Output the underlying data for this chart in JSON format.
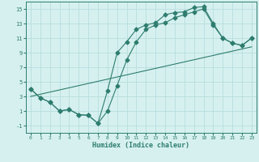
{
  "xlabel": "Humidex (Indice chaleur)",
  "bg_color": "#d6f0f0",
  "line_color": "#2e7d6e",
  "grid_color": "#b8dede",
  "xlim": [
    -0.5,
    23.5
  ],
  "ylim": [
    -2.0,
    16.0
  ],
  "yticks": [
    -1,
    1,
    3,
    5,
    7,
    9,
    11,
    13,
    15
  ],
  "xticks": [
    0,
    1,
    2,
    3,
    4,
    5,
    6,
    7,
    8,
    9,
    10,
    11,
    12,
    13,
    14,
    15,
    16,
    17,
    18,
    19,
    20,
    21,
    22,
    23
  ],
  "line1_x": [
    0,
    1,
    2,
    3,
    4,
    5,
    6,
    7,
    8,
    9,
    10,
    11,
    12,
    13,
    14,
    15,
    16,
    17,
    18,
    19,
    20,
    21,
    22,
    23
  ],
  "line1_y": [
    4.0,
    2.8,
    2.2,
    1.0,
    1.2,
    0.5,
    0.4,
    -0.7,
    3.8,
    9.0,
    10.5,
    12.2,
    12.8,
    13.1,
    14.2,
    14.5,
    14.6,
    15.2,
    15.3,
    13.0,
    11.0,
    10.3,
    10.0,
    11.0
  ],
  "line2_x": [
    0,
    1,
    2,
    3,
    4,
    5,
    6,
    7,
    8,
    9,
    10,
    11,
    12,
    13,
    14,
    15,
    16,
    17,
    18,
    19,
    20,
    21,
    22,
    23
  ],
  "line2_y": [
    4.0,
    2.8,
    2.2,
    1.0,
    1.2,
    0.5,
    0.4,
    -0.7,
    1.0,
    4.5,
    8.0,
    10.5,
    12.2,
    12.8,
    13.1,
    13.8,
    14.2,
    14.6,
    15.0,
    12.8,
    11.0,
    10.3,
    10.0,
    11.0
  ],
  "line3_x": [
    0,
    23
  ],
  "line3_y": [
    3.0,
    9.8
  ]
}
